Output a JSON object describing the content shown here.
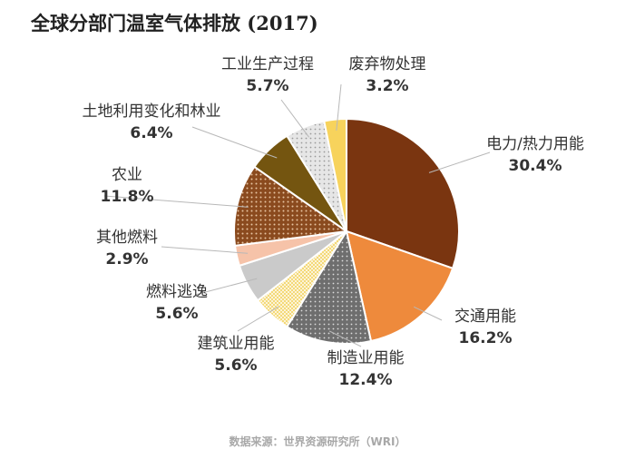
{
  "chart_data": {
    "type": "pie",
    "title": "全球分部门温室气体排放 (2017)",
    "source": "数据来源：世界资源研究所（WRI）",
    "unit": "%",
    "start_angle_deg": 0,
    "direction": "clockwise",
    "slices": [
      {
        "name": "电力/热力用能",
        "value": 30.4,
        "label": "30.4%",
        "color": "#7a3510",
        "pattern": "solid"
      },
      {
        "name": "交通用能",
        "value": 16.2,
        "label": "16.2%",
        "color": "#ee8a3c",
        "pattern": "solid"
      },
      {
        "name": "制造业用能",
        "value": 12.4,
        "label": "12.4%",
        "color": "#6e6e6e",
        "pattern": "dots-light"
      },
      {
        "name": "建筑业用能",
        "value": 5.6,
        "label": "5.6%",
        "color": "#f3d466",
        "pattern": "grid"
      },
      {
        "name": "燃料逃逸",
        "value": 5.6,
        "label": "5.6%",
        "color": "#cacaca",
        "pattern": "solid"
      },
      {
        "name": "其他燃料",
        "value": 2.9,
        "label": "2.9%",
        "color": "#f6c3a9",
        "pattern": "solid"
      },
      {
        "name": "农业",
        "value": 11.8,
        "label": "11.8%",
        "color": "#8a4a1e",
        "pattern": "dots-dark"
      },
      {
        "name": "土地利用变化和林业",
        "value": 6.4,
        "label": "6.4%",
        "color": "#745510",
        "pattern": "solid"
      },
      {
        "name": "工业生产过程",
        "value": 5.7,
        "label": "5.7%",
        "color": "#dcdcdc",
        "pattern": "dots-gray"
      },
      {
        "name": "废弃物处理",
        "value": 3.2,
        "label": "3.2%",
        "color": "#f7d35c",
        "pattern": "solid"
      }
    ]
  }
}
